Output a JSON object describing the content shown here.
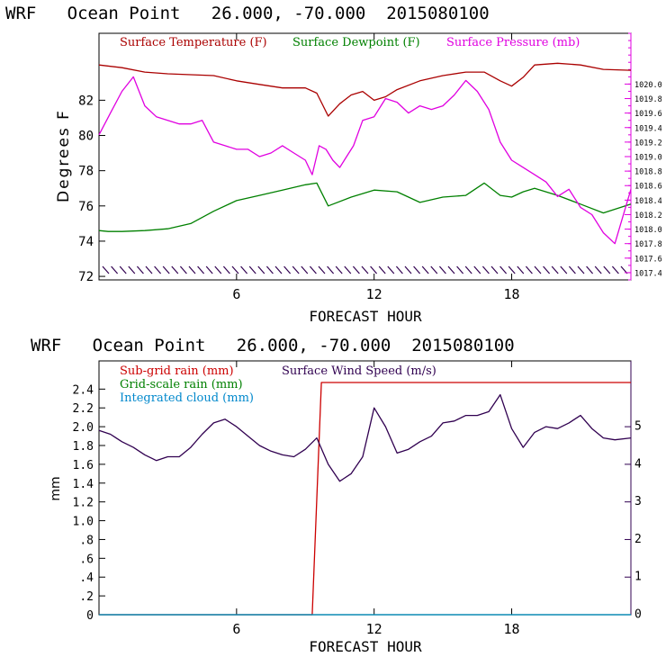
{
  "colors": {
    "temperature": "#aa0000",
    "dewpoint": "#008000",
    "pressure": "#e000e0",
    "subgrid_rain": "#cc0000",
    "grid_rain": "#008000",
    "cloud": "#0088cc",
    "wind": "#300050",
    "axis": "#000000"
  },
  "chart_data": [
    {
      "type": "line",
      "title": "WRF   Ocean Point   26.000, -70.000  2015080100",
      "xlabel": "FORECAST HOUR",
      "ylabel": "Degrees F",
      "xlim": [
        0,
        23.2
      ],
      "ylim": [
        71.8,
        85.8
      ],
      "x_ticks": [
        6,
        12,
        18
      ],
      "x_tick_labels": [
        "6",
        "12",
        "18"
      ],
      "y_ticks": [
        72,
        74,
        76,
        78,
        80,
        82
      ],
      "y_tick_labels": [
        "72",
        "74",
        "76",
        "78",
        "80",
        "82"
      ],
      "y2_label": "Surface Pressure (mb)",
      "y2lim": [
        1017.3,
        1020.7
      ],
      "y2_ticks": [
        1017.4,
        1017.6,
        1017.8,
        1018.0,
        1018.2,
        1018.4,
        1018.6,
        1018.8,
        1019.0,
        1019.2,
        1019.4,
        1019.6,
        1019.8,
        1020.0
      ],
      "y2_tick_labels": [
        "1017.4",
        "1017.6",
        "1017.8",
        "1018.0",
        "1018.2",
        "1018.4",
        "1018.6",
        "1018.8",
        "1019.0",
        "1019.2",
        "1019.4",
        "1019.6",
        "1019.8",
        "1020.0"
      ],
      "legend": [
        "Surface Temperature (F)",
        "Surface Dewpoint (F)",
        "Surface Pressure (mb)"
      ],
      "series": [
        {
          "name": "Surface Temperature (F)",
          "axis": "left",
          "x": [
            0,
            1,
            2,
            3,
            4,
            5,
            6,
            7,
            8,
            9,
            9.5,
            10,
            10.5,
            11,
            11.5,
            12,
            12.5,
            13,
            14,
            15,
            16,
            16.8,
            17.5,
            18,
            18.5,
            19,
            20,
            21,
            22,
            23.2
          ],
          "values": [
            84.0,
            83.85,
            83.6,
            83.5,
            83.45,
            83.4,
            83.1,
            82.9,
            82.7,
            82.7,
            82.4,
            81.1,
            81.8,
            82.3,
            82.5,
            82.0,
            82.2,
            82.6,
            83.1,
            83.4,
            83.6,
            83.6,
            83.1,
            82.8,
            83.3,
            84.0,
            84.1,
            84.0,
            83.75,
            83.7
          ]
        },
        {
          "name": "Surface Dewpoint (F)",
          "axis": "left",
          "x": [
            0,
            0.4,
            1,
            2,
            3,
            4,
            5,
            6,
            7,
            8,
            9,
            9.5,
            10,
            11,
            12,
            13,
            14,
            15,
            16,
            16.8,
            17.5,
            18,
            18.5,
            19,
            20,
            21,
            22,
            23.2
          ],
          "values": [
            74.6,
            74.55,
            74.55,
            74.6,
            74.7,
            75.0,
            75.7,
            76.3,
            76.6,
            76.9,
            77.2,
            77.3,
            76.0,
            76.5,
            76.9,
            76.8,
            76.2,
            76.5,
            76.6,
            77.3,
            76.6,
            76.5,
            76.8,
            77.0,
            76.6,
            76.1,
            75.6,
            76.1
          ]
        },
        {
          "name": "Surface Pressure (mb)",
          "axis": "right",
          "x": [
            0,
            0.5,
            1,
            1.5,
            2,
            2.5,
            3,
            3.5,
            4,
            4.5,
            5,
            5.5,
            6,
            6.5,
            7,
            7.5,
            8,
            8.5,
            9,
            9.3,
            9.6,
            9.9,
            10.2,
            10.5,
            10.8,
            11.1,
            11.5,
            12,
            12.5,
            13,
            13.5,
            14,
            14.5,
            15,
            15.5,
            16,
            16.5,
            17,
            17.5,
            18,
            18.5,
            19,
            19.5,
            20,
            20.5,
            21,
            21.5,
            22,
            22.5,
            23.2
          ],
          "values": [
            1019.3,
            1019.6,
            1019.9,
            1020.1,
            1019.7,
            1019.55,
            1019.5,
            1019.45,
            1019.45,
            1019.5,
            1019.2,
            1019.15,
            1019.1,
            1019.1,
            1019.0,
            1019.05,
            1019.15,
            1019.05,
            1018.95,
            1018.75,
            1019.15,
            1019.1,
            1018.95,
            1018.85,
            1019.0,
            1019.15,
            1019.5,
            1019.55,
            1019.8,
            1019.75,
            1019.6,
            1019.7,
            1019.65,
            1019.7,
            1019.85,
            1020.05,
            1019.9,
            1019.65,
            1019.2,
            1018.95,
            1018.85,
            1018.75,
            1018.65,
            1018.45,
            1018.55,
            1018.3,
            1018.2,
            1017.95,
            1017.8,
            1018.55
          ]
        }
      ],
      "annotations": [
        "hatched band along lower axis"
      ]
    },
    {
      "type": "line",
      "title": "WRF   Ocean Point   26.000, -70.000  2015080100",
      "xlabel": "FORECAST HOUR",
      "ylabel": "mm",
      "xlim": [
        0,
        23.2
      ],
      "ylim": [
        0,
        2.7
      ],
      "x_ticks": [
        6,
        12,
        18
      ],
      "x_tick_labels": [
        "6",
        "12",
        "18"
      ],
      "y_ticks": [
        0,
        0.2,
        0.4,
        0.6,
        0.8,
        1.0,
        1.2,
        1.4,
        1.6,
        1.8,
        2.0,
        2.2,
        2.4
      ],
      "y_tick_labels": [
        "0",
        ".2",
        ".4",
        ".6",
        ".8",
        "1.0",
        "1.2",
        "1.4",
        "1.6",
        "1.8",
        "2.0",
        "2.2",
        "2.4"
      ],
      "y2_label": "Surface Wind Speed (m/s)",
      "y2lim": [
        0,
        6.75
      ],
      "y2_ticks": [
        0,
        1,
        2,
        3,
        4,
        5
      ],
      "y2_tick_labels": [
        "0",
        "1",
        "2",
        "3",
        "4",
        "5"
      ],
      "legend": [
        "Sub-grid rain (mm)",
        "Grid-scale rain (mm)",
        "Integrated cloud (mm)",
        "Surface Wind Speed (m/s)"
      ],
      "series": [
        {
          "name": "Sub-grid rain (mm)",
          "axis": "left",
          "x": [
            0,
            9.3,
            9.7,
            23.2
          ],
          "values": [
            0,
            0,
            2.47,
            2.47
          ]
        },
        {
          "name": "Grid-scale rain (mm)",
          "axis": "left",
          "x": [
            0,
            23.2
          ],
          "values": [
            0,
            0
          ]
        },
        {
          "name": "Integrated cloud (mm)",
          "axis": "left",
          "x": [
            0,
            23.2
          ],
          "values": [
            0,
            0
          ]
        },
        {
          "name": "Surface Wind Speed (m/s)",
          "axis": "right",
          "x": [
            0,
            0.5,
            1,
            1.5,
            2,
            2.5,
            3,
            3.5,
            4,
            4.5,
            5,
            5.5,
            6,
            6.5,
            7,
            7.5,
            8,
            8.5,
            9,
            9.5,
            10,
            10.5,
            11,
            11.5,
            12,
            12.5,
            13,
            13.5,
            14,
            14.5,
            15,
            15.5,
            16,
            16.5,
            17,
            17.5,
            18,
            18.5,
            19,
            19.5,
            20,
            20.5,
            21,
            21.5,
            22,
            22.5,
            23.2
          ],
          "values": [
            4.9,
            4.8,
            4.6,
            4.45,
            4.25,
            4.1,
            4.2,
            4.2,
            4.45,
            4.8,
            5.1,
            5.2,
            5.0,
            4.75,
            4.5,
            4.35,
            4.25,
            4.2,
            4.4,
            4.7,
            4.0,
            3.55,
            3.75,
            4.2,
            5.5,
            5.0,
            4.3,
            4.4,
            4.6,
            4.75,
            5.1,
            5.15,
            5.3,
            5.3,
            5.4,
            5.85,
            4.95,
            4.45,
            4.85,
            5.0,
            4.95,
            5.1,
            5.3,
            4.95,
            4.7,
            4.65,
            4.7
          ]
        }
      ]
    }
  ]
}
